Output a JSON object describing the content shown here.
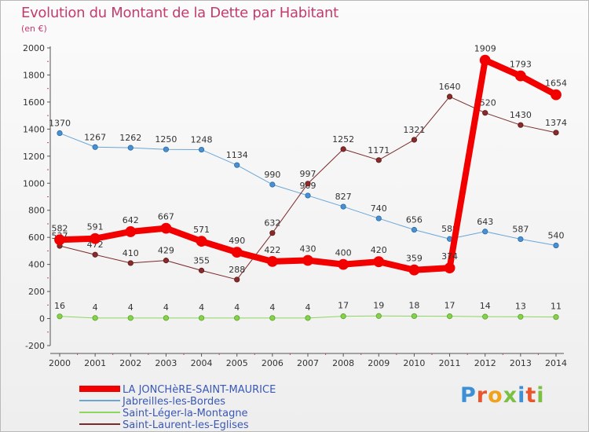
{
  "header": {
    "title": "Evolution du Montant de la Dette par Habitant",
    "subtitle": "(en €)"
  },
  "logo": {
    "text": "Proxiti"
  },
  "chart_data": {
    "type": "line",
    "title": "Evolution du Montant de la Dette par Habitant",
    "subtitle": "(en €)",
    "x": [
      "2000",
      "2001",
      "2002",
      "2003",
      "2004",
      "2005",
      "2006",
      "2007",
      "2008",
      "2009",
      "2010",
      "2011",
      "2012",
      "2013",
      "2014"
    ],
    "ylim": [
      -200,
      2000
    ],
    "yticks": [
      -200,
      0,
      200,
      400,
      600,
      800,
      1000,
      1200,
      1400,
      1600,
      1800,
      2000
    ],
    "grid": false,
    "legend_position": "bottom-left",
    "series": [
      {
        "name": "LA JONCHèRE-SAINT-MAURICE",
        "color": "#f20000",
        "values": [
          582,
          591,
          642,
          667,
          571,
          490,
          422,
          430,
          400,
          420,
          359,
          374,
          1909,
          1793,
          1654
        ]
      },
      {
        "name": "Jabreilles-les-Bordes",
        "color": "#5b9bd5",
        "values": [
          1370,
          1267,
          1262,
          1250,
          1248,
          1134,
          990,
          909,
          827,
          740,
          656,
          588,
          643,
          587,
          540
        ]
      },
      {
        "name": "Saint-Léger-la-Montagne",
        "color": "#8fd65f",
        "values": [
          16,
          4,
          4,
          4,
          4,
          4,
          4,
          4,
          17,
          19,
          18,
          17,
          14,
          13,
          11
        ]
      },
      {
        "name": "Saint-Laurent-les-Eglises",
        "color": "#7a2a2a",
        "values": [
          537,
          472,
          410,
          429,
          355,
          288,
          632,
          997,
          1252,
          1171,
          1321,
          1640,
          1520,
          1430,
          1374
        ]
      }
    ]
  }
}
